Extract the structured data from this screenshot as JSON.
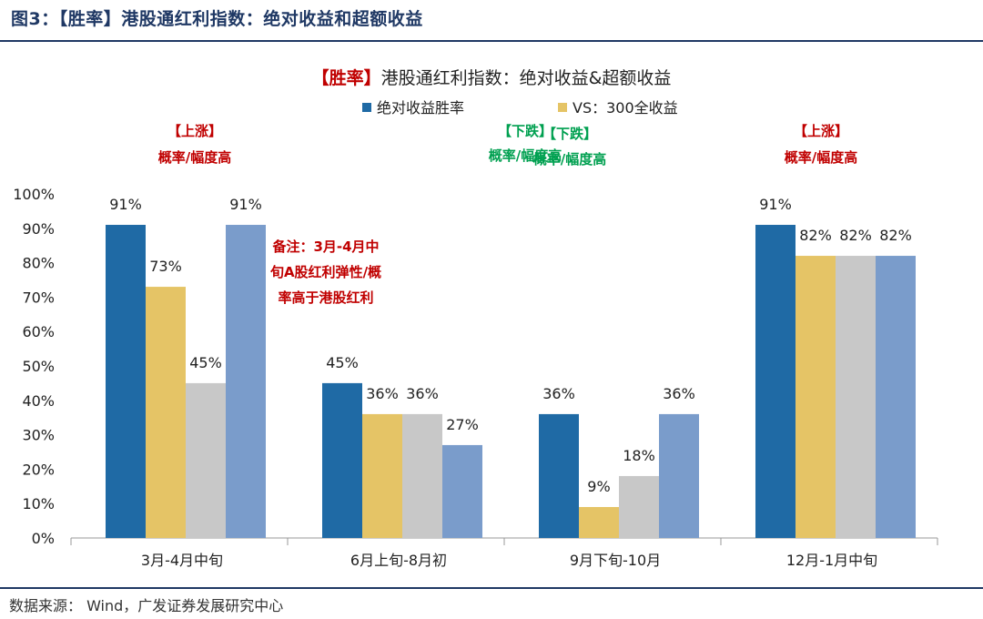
{
  "figure_caption": "图3：【胜率】港股通红利指数：绝对收益和超额收益",
  "source_text": "数据来源： Wind，广发证券发展研究中心",
  "colors": {
    "abs_win": "#1f6aa5",
    "vs300": "#e5c466",
    "gray": "#c8c8c8",
    "lightblue": "#7a9ccb",
    "red": "#c00000",
    "green": "#00a050",
    "navy": "#1f3864"
  },
  "chart_data": {
    "type": "bar",
    "title_prefix": "【胜率】",
    "title_main": "港股通红利指数：绝对收益&超额收益",
    "ylim": [
      0,
      100
    ],
    "yticks": [
      0,
      10,
      20,
      30,
      40,
      50,
      60,
      70,
      80,
      90,
      100
    ],
    "ytick_labels": [
      "0%",
      "10%",
      "20%",
      "30%",
      "40%",
      "50%",
      "60%",
      "70%",
      "80%",
      "90%",
      "100%"
    ],
    "categories": [
      "3月-4月中旬",
      "6月上旬-8月初",
      "9月下旬-10月",
      "12月-1月中旬"
    ],
    "series": [
      {
        "name": "绝对收益胜率",
        "color_key": "abs_win",
        "values": [
          91,
          45,
          36,
          91
        ],
        "labels": [
          "91%",
          "45%",
          "36%",
          "91%"
        ]
      },
      {
        "name": "VS：300全收益",
        "color_key": "vs300",
        "values": [
          73,
          36,
          9,
          82
        ],
        "labels": [
          "73%",
          "36%",
          "9%",
          "82%"
        ]
      },
      {
        "name": "",
        "color_key": "gray",
        "values": [
          45,
          36,
          18,
          82
        ],
        "labels": [
          "45%",
          "36%",
          "18%",
          "82%"
        ]
      },
      {
        "name": "",
        "color_key": "lightblue",
        "values": [
          91,
          27,
          36,
          82
        ],
        "labels": [
          "91%",
          "27%",
          "36%",
          "82%"
        ]
      }
    ],
    "legend": [
      {
        "name": "绝对收益胜率",
        "color_key": "abs_win"
      },
      {
        "name": "VS：300全收益",
        "color_key": "vs300"
      }
    ],
    "annotations": [
      {
        "tag": "【上涨】",
        "desc": "概率/幅度高",
        "color_key": "red",
        "category": 0
      },
      {
        "tag": "【下跌】",
        "desc": "概率/幅度高",
        "color_key": "green",
        "category": 1
      },
      {
        "tag": "【下跌】",
        "desc": "概率/幅度高",
        "color_key": "green",
        "category": 2
      },
      {
        "tag": "【上涨】",
        "desc": "概率/幅度高",
        "color_key": "red",
        "category": 3
      }
    ],
    "note_lines": [
      "备注：3月-4月中",
      "旬A股红利弹性/概",
      "率高于港股红利"
    ]
  }
}
